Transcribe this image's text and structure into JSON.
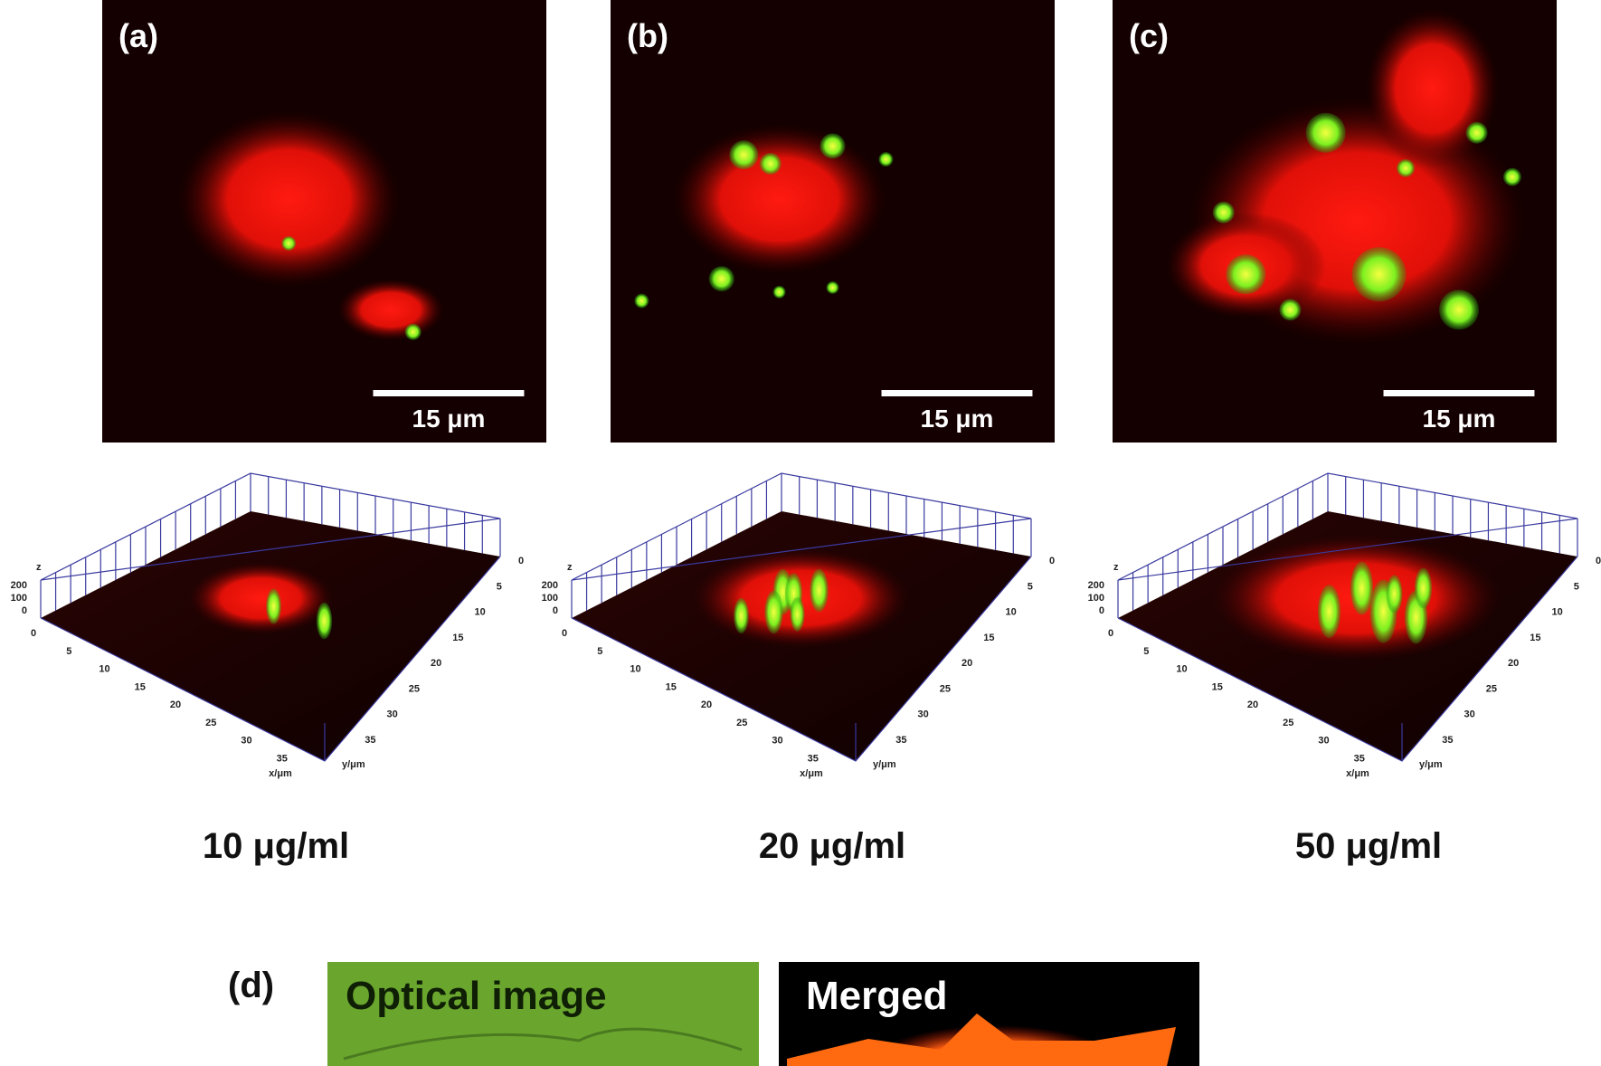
{
  "panels": [
    {
      "label": "(a)",
      "scale_bar": "15 μm",
      "concentration": "10 μg/ml",
      "plot": {
        "z_label": "z",
        "z_ticks": [
          "200",
          "100",
          "0"
        ],
        "x_ticks": [
          "0",
          "5",
          "10",
          "15",
          "20",
          "25",
          "30",
          "35"
        ],
        "y_ticks": [
          "0",
          "5",
          "10",
          "15",
          "20",
          "25",
          "30",
          "35"
        ],
        "x_label": "x/μm",
        "y_label": "y/μm"
      }
    },
    {
      "label": "(b)",
      "scale_bar": "15 μm",
      "concentration": "20 μg/ml",
      "plot": {
        "z_label": "z",
        "z_ticks": [
          "200",
          "100",
          "0"
        ],
        "x_ticks": [
          "0",
          "5",
          "10",
          "15",
          "20",
          "25",
          "30",
          "35"
        ],
        "y_ticks": [
          "0",
          "5",
          "10",
          "15",
          "20",
          "25",
          "30",
          "35"
        ],
        "x_label": "x/μm",
        "y_label": "y/μm"
      }
    },
    {
      "label": "(c)",
      "scale_bar": "15 μm",
      "concentration": "50 μg/ml",
      "plot": {
        "z_label": "z",
        "z_ticks": [
          "200",
          "100",
          "0"
        ],
        "x_ticks": [
          "0",
          "5",
          "10",
          "15",
          "20",
          "25",
          "30",
          "35"
        ],
        "y_ticks": [
          "0",
          "5",
          "10",
          "15",
          "20",
          "25",
          "30",
          "35"
        ],
        "x_label": "x/μm",
        "y_label": "y/μm"
      }
    }
  ],
  "panel_d": {
    "label": "(d)",
    "images": [
      "Optical image",
      "Merged"
    ]
  }
}
